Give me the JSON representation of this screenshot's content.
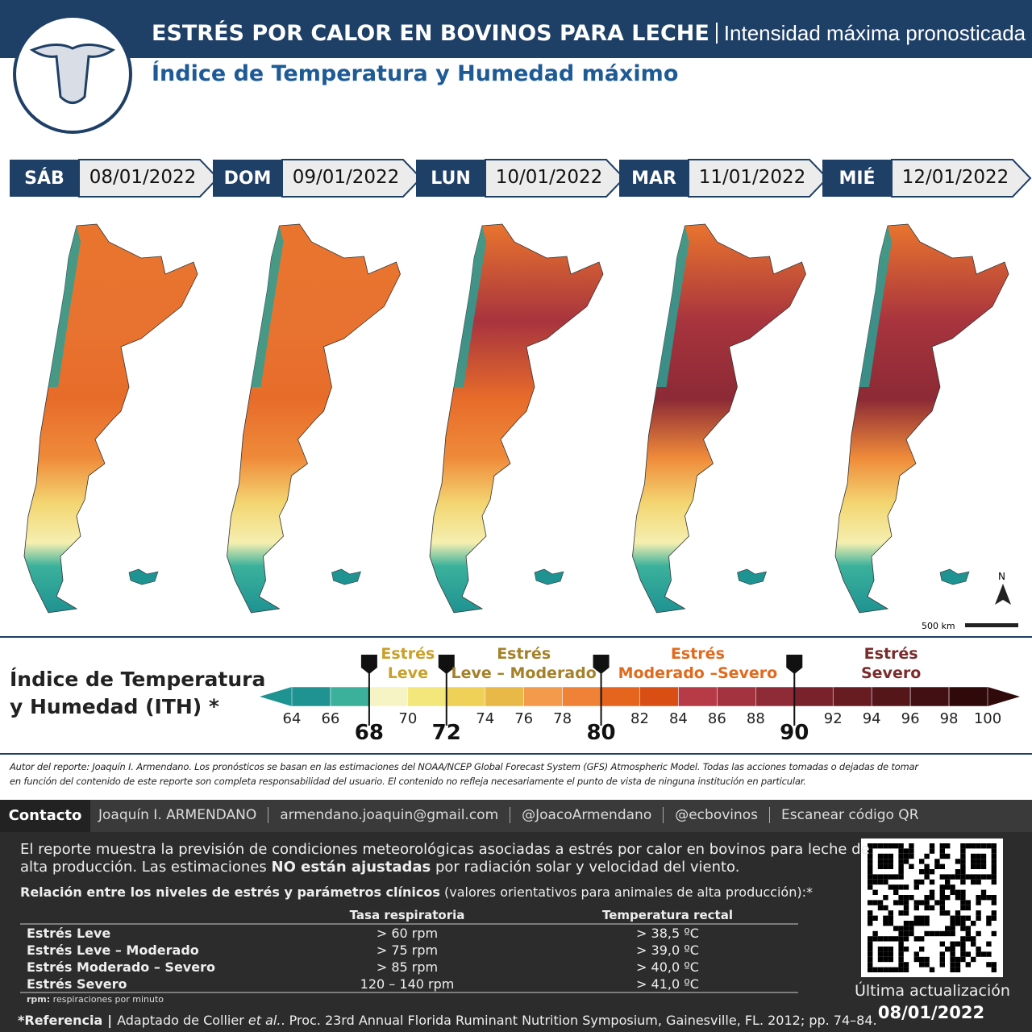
{
  "header": {
    "title": "ESTRÉS POR CALOR EN BOVINOS PARA LECHE",
    "title_note": "Intensidad máxima pronosticada",
    "subtitle": "Índice de Temperatura y Humedad máximo"
  },
  "days": [
    {
      "day": "SÁB",
      "date": "08/01/2022"
    },
    {
      "day": "DOM",
      "date": "09/01/2022"
    },
    {
      "day": "LUN",
      "date": "10/01/2022"
    },
    {
      "day": "MAR",
      "date": "11/01/2022"
    },
    {
      "day": "MIÉ",
      "date": "12/01/2022"
    }
  ],
  "map": {
    "north": "N",
    "scale_bar": "500 km"
  },
  "scale": {
    "title": [
      "Índice de Temperatura",
      "y Humedad (ITH) *"
    ],
    "ticks": [
      64,
      66,
      70,
      74,
      76,
      78,
      82,
      84,
      86,
      88,
      92,
      94,
      96,
      98,
      100
    ],
    "thresholds": [
      68,
      72,
      80,
      90
    ],
    "colors": [
      "#1f9292",
      "#3bb19c",
      "#f6f4c4",
      "#f3e67a",
      "#efd158",
      "#e9b947",
      "#f39a4c",
      "#ef8236",
      "#e5641e",
      "#d94e13",
      "#b73a47",
      "#a3333f",
      "#8f2b36",
      "#7a222b",
      "#671c22",
      "#55161a",
      "#421012",
      "#300a0b"
    ],
    "levels": [
      {
        "lines": [
          "Estrés",
          "Leve"
        ],
        "color": "#c8a02a",
        "from": 68,
        "to": 72
      },
      {
        "lines": [
          "Estrés",
          "Leve – Moderado"
        ],
        "color": "#a4812a",
        "from": 72,
        "to": 80
      },
      {
        "lines": [
          "Estrés",
          "Moderado –Severo"
        ],
        "color": "#e06a1e",
        "from": 80,
        "to": 90
      },
      {
        "lines": [
          "Estrés",
          "Severo"
        ],
        "color": "#7a2b2b",
        "from": 90,
        "to": 100
      }
    ]
  },
  "disclaimer": [
    "Autor del reporte: Joaquín I. Armendano. Los pronósticos se basan en las estimaciones del NOAA/NCEP Global Forecast System (GFS) Atmospheric Model. Todas las acciones tomadas o dejadas de tomar",
    "en función del contenido de este reporte son completa responsabilidad del usuario. El contenido no refleja necesariamente el punto de vista de ninguna institución en particular."
  ],
  "contact": {
    "label": "Contacto",
    "items": [
      "Joaquín I. ARMENDANO",
      "armendano.joaquin@gmail.com",
      "@JoacoArmendano",
      "@ecbovinos",
      "Escanear código QR"
    ]
  },
  "report": {
    "lines": [
      [
        "El reporte muestra la previsión de condiciones meteorológicas asociadas a estrés por calor en bovinos para leche de"
      ],
      [
        "alta producción. Las estimaciones ",
        "NO están ajustadas",
        " por radiación solar y velocidad del viento."
      ]
    ],
    "table_title": [
      "Relación entre los niveles de estrés y parámetros clínicos",
      " (valores orientativos para animales de alta producción):*"
    ]
  },
  "table": {
    "headers": [
      "Tasa respiratoria",
      "Temperatura rectal"
    ],
    "rows": [
      [
        "Estrés Leve",
        "> 60 rpm",
        "> 38,5 ºC"
      ],
      [
        "Estrés Leve – Moderado",
        "> 75 rpm",
        "> 39,0 ºC"
      ],
      [
        "Estrés Moderado – Severo",
        "> 85 rpm",
        "> 40,0 ºC"
      ],
      [
        "Estrés Severo",
        "120 – 140 rpm",
        "> 41,0 ºC"
      ]
    ],
    "note": [
      "rpm:",
      " respiraciones por minuto"
    ]
  },
  "update": {
    "label": "Última actualización",
    "date": "08/01/2022"
  },
  "reference": [
    "*Referencia",
    "|",
    "Adaptado de Collier ",
    "et al.",
    ". Proc. 23rd Annual Florida Ruminant Nutrition Symposium, Gainesville, FL. 2012; pp. 74–84."
  ]
}
